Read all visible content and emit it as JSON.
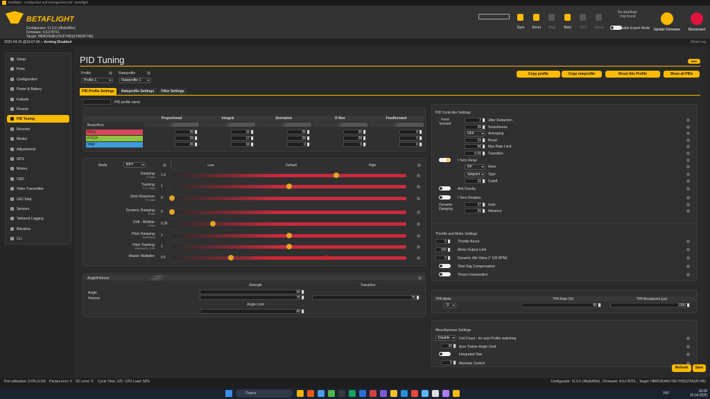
{
  "window_title": "Betaflight - Configurator and management tool - Betaflight",
  "header": {
    "logo": "BETAFLIGHT",
    "configurator": "Configurator: 11.0.0 (48a5d45e)",
    "firmware": "Firmware: 4.6.0 BTFL",
    "target": "Target: HBRO/KAKUTEF7HD(STM32F745)",
    "sensors": [
      "Gyro",
      "Accel",
      "Mag",
      "Baro",
      "GPS",
      "Sonar"
    ],
    "sensors_active": [
      true,
      true,
      false,
      true,
      false,
      false
    ],
    "dataflash": "No dataflash chip found",
    "expert_mode": "Enable Expert Mode",
    "update_firmware": "Update Firmware",
    "disconnect": "Disconnect"
  },
  "status": {
    "time": "2025-04-15 @16:07:46",
    "arming": "-- Arming Disabled",
    "show_log": "Show Log"
  },
  "menu": {
    "items": [
      "Setup",
      "Ports",
      "Configuration",
      "Power & Battery",
      "Failsafe",
      "Presets",
      "PID Tuning",
      "Receiver",
      "Modes",
      "Adjustments",
      "GPS",
      "Motors",
      "OSD",
      "Video Transmitter",
      "LED Strip",
      "Sensors",
      "Tethered Logging",
      "Blackbox",
      "CLI"
    ],
    "active": 6
  },
  "page": {
    "title": "PID Tuning",
    "wiki": "WIKI",
    "profile_label": "Profile",
    "profile": "Profile 1",
    "rateprofile_label": "Rateprofile",
    "rateprofile": "Rateprofile 1",
    "buttons": [
      "Copy profile",
      "Copy rateprofile",
      "Reset this Profile",
      "Show all PIDs"
    ],
    "tabs": [
      "PID Profile Settings",
      "Rateprofile Settings",
      "Filter Settings"
    ],
    "active_tab": 0,
    "profile_name_label": "PID profile name"
  },
  "pid": {
    "section": "Basic/Acro",
    "columns": [
      "Proportional",
      "Integral",
      "Derivative",
      "D Max",
      "Feedforward"
    ],
    "rows": [
      {
        "name": "ROLL",
        "color": "#d9475a",
        "values": [
          26,
          16,
          25,
          25,
          0
        ]
      },
      {
        "name": "PITCH",
        "color": "#8cc63f",
        "values": [
          28,
          17,
          28,
          28,
          0
        ]
      },
      {
        "name": "YAW",
        "color": "#3d9bd9",
        "values": [
          26,
          16,
          0,
          0,
          0
        ]
      }
    ]
  },
  "sliders": {
    "mode_label": "Mode",
    "mode": "RPY",
    "levels": [
      "Low",
      "Default",
      "High"
    ],
    "range": [
      0,
      2
    ],
    "rows": [
      {
        "label": "Damping:",
        "sub": "D Gains",
        "value": 1.4
      },
      {
        "label": "Tracking:",
        "sub": "P & I Gains",
        "value": 1
      },
      {
        "label": "Stick Response:",
        "sub": "FF Gains",
        "value": 0
      },
      {
        "label": "Dynamic Damping:",
        "sub": "D Max",
        "value": 0
      },
      {
        "label": "Drift - Wobble:",
        "sub": "I Gains",
        "value": 0.35
      },
      {
        "label": "Pitch Damping:",
        "sub": "Pitch:Roll D",
        "value": 1
      },
      {
        "label": "Pitch Tracking:",
        "sub": "Pitch:Roll P, I & FF",
        "value": 1
      },
      {
        "label": "Master Multiplier:",
        "value": 0.5
      }
    ]
  },
  "angle_horizon": {
    "title": "Angle/Horizon",
    "strength": "Strength",
    "transition": "Transition",
    "angle": "Angle",
    "angle_strength": 50,
    "horizon": "Horizon",
    "horizon_strength": 75,
    "horizon_transition": 75,
    "angle_limit_label": "Angle Limit",
    "angle_limit": 60
  },
  "controller": {
    "title": "PID Controller Settings",
    "ff_label": "Feed forward",
    "ff_rows": [
      {
        "value": 7,
        "label": "Jitter Reduction"
      },
      {
        "value": 25,
        "label": "Smoothness"
      },
      {
        "value": "OFF",
        "label": "Averaging"
      },
      {
        "value": 15,
        "label": "Boost"
      },
      {
        "value": 90,
        "label": "Max Rate Limit"
      },
      {
        "value": "0.00",
        "label": "Transition"
      }
    ],
    "iterm_relax": {
      "label": "I Term Relax",
      "enabled": true,
      "rows": [
        {
          "value": "RP",
          "label": "Axes"
        },
        {
          "value": "Setpoint",
          "label": "Type"
        },
        {
          "value": 15,
          "label": "Cutoff"
        }
      ]
    },
    "anti_gravity": {
      "label": "Anti Gravity",
      "enabled": false
    },
    "iterm_rotation": {
      "label": "I Term Rotation",
      "enabled": false
    },
    "dyn_damping": {
      "label": "Dynamic Damping",
      "rows": [
        {
          "value": 37,
          "label": "Gain"
        },
        {
          "value": 20,
          "label": "Advance"
        }
      ]
    }
  },
  "throttle": {
    "title": "Throttle and Motor Settings",
    "rows": [
      {
        "value": 0,
        "label": "Throttle Boost"
      },
      {
        "value": 100,
        "label": "Motor Output Limit"
      },
      {
        "value": 0,
        "label": "Dynamic Idle Value (* 100 RPM)"
      }
    ],
    "toggles": [
      {
        "label": "Vbat Sag Compensation",
        "enabled": false
      },
      {
        "label": "Thrust Linearization",
        "enabled": false
      }
    ]
  },
  "tpa": {
    "mode_label": "TPA Mode",
    "mode": "D",
    "rate_label": "TPA Rate (%)",
    "rate": 65,
    "breakpoint_label": "TPA Breakpoint (µs)",
    "breakpoint": 1350
  },
  "misc": {
    "title": "Miscellaneous Settings",
    "cell_count": "Disable",
    "cell_count_label": "Cell Count - for auto Profile switching",
    "acro_trainer": 20,
    "acro_trainer_label": "Acro Trainer Angle Limit",
    "integrated_yaw_label": "Integrated Yaw",
    "integrated_yaw": false,
    "absolute_control": 0,
    "absolute_control_label": "Absolute Control"
  },
  "actions": [
    "Refresh",
    "Save"
  ],
  "footer": {
    "stats": [
      "Port utilization: D:0% U:0%",
      "Packet error: 0",
      "I2C error: 9",
      "Cycle Time: 125",
      "CPU Load: 50%"
    ],
    "versions": "Configurator: 11.0.0 (48a5d45e) , Firmware: 4.6.0 BTFL , Target: HBRO/KAKUTEF7HD(STM32F745)"
  },
  "taskbar": {
    "search": "Поиск",
    "lang": "УКР",
    "time": "16:08",
    "date": "15.04.2025"
  }
}
